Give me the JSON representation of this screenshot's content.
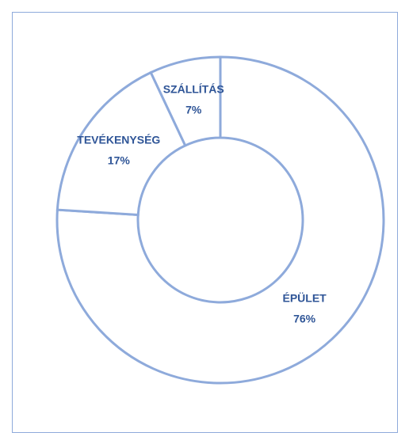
{
  "chart_data": {
    "type": "donut",
    "categories": [
      "ÉPÜLET",
      "TEVÉKENYSÉG",
      "SZÁLLÍTÁS"
    ],
    "values": [
      76,
      17,
      7
    ],
    "value_labels": [
      "76%",
      "17%",
      "7%"
    ],
    "color": "#8eaadb"
  }
}
